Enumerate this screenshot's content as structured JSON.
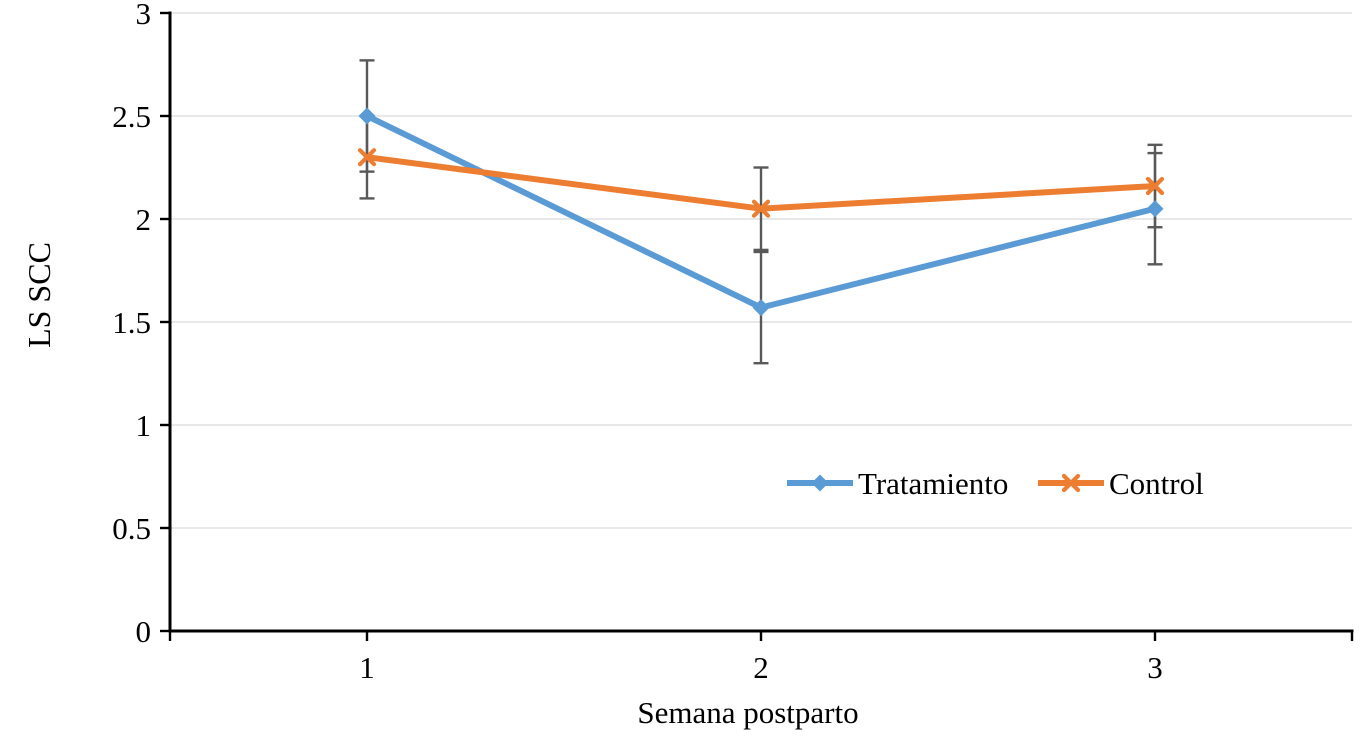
{
  "chart_data": {
    "type": "line",
    "title": "",
    "xlabel": "Semana postparto",
    "ylabel": "LS SCC",
    "x_categories": [
      "1",
      "2",
      "3"
    ],
    "y_ticks": [
      0,
      0.5,
      1,
      1.5,
      2,
      2.5,
      3
    ],
    "y_tick_labels": [
      "0",
      "0.5",
      "1",
      "1.5",
      "2",
      "2.5",
      "3"
    ],
    "ylim": [
      0,
      3
    ],
    "grid": true,
    "legend_position": "inside-right-middle",
    "series": [
      {
        "name": "Tratamiento",
        "color": "#5B9BD5",
        "marker": "diamond",
        "values": [
          2.5,
          1.57,
          2.05
        ],
        "error": [
          0.27,
          0.27,
          0.27
        ]
      },
      {
        "name": "Control",
        "color": "#ED7D31",
        "marker": "x",
        "values": [
          2.3,
          2.05,
          2.16
        ],
        "error": [
          0.2,
          0.2,
          0.2
        ]
      }
    ],
    "colors": {
      "error_bar": "#595959",
      "gridline": "#D9D9D9",
      "axis": "#000000",
      "text": "#000000",
      "background": "#FFFFFF"
    }
  }
}
